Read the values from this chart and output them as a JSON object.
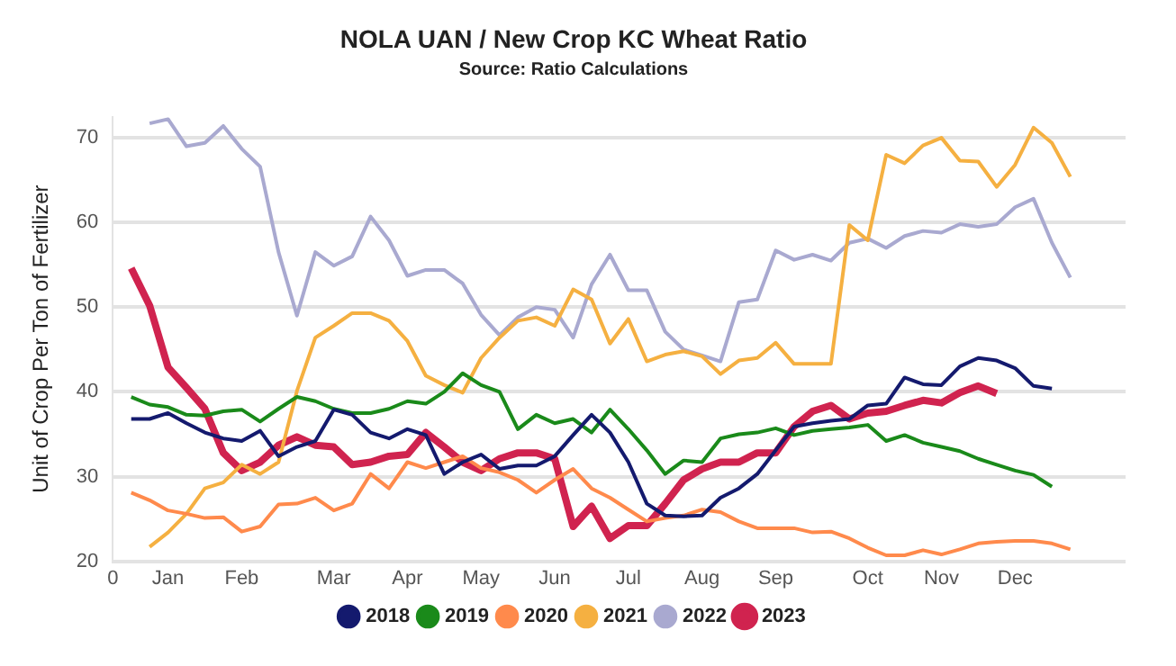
{
  "chart_data": {
    "type": "line",
    "title": "NOLA UAN / New Crop KC Wheat Ratio",
    "subtitle": "Source: Ratio Calculations",
    "ylabel": "Unit of Crop Per Ton of Fertilizer",
    "categories": [
      "0",
      null,
      null,
      "Jan",
      null,
      null,
      null,
      "Feb",
      null,
      null,
      null,
      null,
      "Mar",
      null,
      null,
      null,
      "Apr",
      null,
      null,
      null,
      "May",
      null,
      null,
      null,
      "Jun",
      null,
      null,
      null,
      "Jul",
      null,
      null,
      null,
      "Aug",
      null,
      null,
      null,
      "Sep",
      null,
      null,
      null,
      null,
      "Oct",
      null,
      null,
      null,
      "Nov",
      null,
      null,
      null,
      "Dec",
      null,
      null,
      null,
      null,
      null,
      null
    ],
    "ylim": [
      20,
      72.5
    ],
    "yticks": [
      20,
      30,
      40,
      50,
      60,
      70
    ],
    "grid": "y",
    "legend": "bottom",
    "marker": "none",
    "line_style": "solid",
    "series": [
      {
        "name": "2018",
        "color": "#141a6e",
        "values": [
          null,
          36.8,
          36.8,
          37.5,
          36.3,
          35.2,
          34.5,
          34.2,
          35.4,
          32.4,
          33.5,
          34.2,
          37.9,
          37.3,
          35.2,
          34.5,
          35.6,
          34.9,
          30.3,
          31.7,
          32.6,
          30.9,
          31.3,
          31.3,
          32.4,
          34.9,
          37.3,
          35.2,
          31.7,
          26.8,
          25.4,
          25.3,
          25.4,
          27.5,
          28.6,
          30.3,
          33.1,
          35.9,
          36.3,
          36.6,
          36.8,
          38.4,
          38.6,
          41.7,
          40.9,
          40.8,
          43.0,
          44.0,
          43.7,
          42.8,
          40.7,
          40.4,
          null,
          null,
          null,
          null
        ]
      },
      {
        "name": "2019",
        "color": "#1a8a1a",
        "values": [
          null,
          39.4,
          38.5,
          38.2,
          37.3,
          37.2,
          37.7,
          37.9,
          36.5,
          38.0,
          39.4,
          38.9,
          38.0,
          37.5,
          37.5,
          38.0,
          38.9,
          38.6,
          40.0,
          42.2,
          40.8,
          40.0,
          35.6,
          37.3,
          36.3,
          36.8,
          35.2,
          37.9,
          35.6,
          33.1,
          30.3,
          31.9,
          31.7,
          34.5,
          35.0,
          35.2,
          35.7,
          34.9,
          35.4,
          35.6,
          35.8,
          36.1,
          34.2,
          34.9,
          34.0,
          33.5,
          33.0,
          32.1,
          31.4,
          30.7,
          30.2,
          28.8,
          null,
          null,
          null,
          null
        ]
      },
      {
        "name": "2020",
        "color": "#ff8a4c",
        "values": [
          null,
          28.1,
          27.2,
          26.0,
          25.6,
          25.1,
          25.2,
          23.5,
          24.1,
          26.7,
          26.8,
          27.5,
          26.0,
          26.8,
          30.3,
          28.6,
          31.7,
          31.0,
          31.7,
          32.4,
          31.0,
          30.5,
          29.6,
          28.1,
          29.6,
          30.9,
          28.6,
          27.5,
          26.1,
          24.7,
          25.1,
          25.4,
          26.1,
          25.8,
          24.7,
          23.9,
          23.9,
          23.9,
          23.4,
          23.5,
          22.7,
          21.6,
          20.7,
          20.7,
          21.3,
          20.8,
          21.4,
          22.1,
          22.3,
          22.4,
          22.4,
          22.1,
          21.4,
          null,
          null,
          null
        ]
      },
      {
        "name": "2021",
        "color": "#f5b041",
        "values": [
          null,
          null,
          21.7,
          23.4,
          25.6,
          28.6,
          29.3,
          31.4,
          30.3,
          31.7,
          40.1,
          46.4,
          47.8,
          49.3,
          49.3,
          48.4,
          46.0,
          41.9,
          40.8,
          39.9,
          44.0,
          46.4,
          48.4,
          48.8,
          47.8,
          52.1,
          50.9,
          45.7,
          48.6,
          43.6,
          44.4,
          44.8,
          44.2,
          42.1,
          43.7,
          44.0,
          45.8,
          43.3,
          43.3,
          43.3,
          59.7,
          57.9,
          68.0,
          67.0,
          69.1,
          70.0,
          67.3,
          67.2,
          64.2,
          66.8,
          71.2,
          69.4,
          65.4,
          null,
          null,
          null
        ]
      },
      {
        "name": "2022",
        "color": "#a9a9d0",
        "values": [
          null,
          null,
          71.7,
          72.2,
          69.0,
          69.4,
          71.4,
          68.7,
          66.6,
          56.5,
          49.0,
          56.5,
          54.9,
          56.0,
          60.7,
          57.9,
          53.7,
          54.4,
          54.4,
          52.8,
          49.1,
          46.7,
          48.8,
          50.0,
          49.7,
          46.4,
          52.7,
          56.2,
          52.0,
          52.0,
          47.1,
          45.0,
          44.3,
          43.6,
          50.6,
          50.9,
          56.7,
          55.6,
          56.2,
          55.5,
          57.6,
          58.1,
          57.0,
          58.4,
          59.0,
          58.8,
          59.8,
          59.5,
          59.8,
          61.8,
          62.8,
          57.6,
          53.5,
          null,
          null,
          null
        ]
      },
      {
        "name": "2023",
        "color": "#d0234f",
        "values": [
          null,
          54.6,
          50.2,
          42.9,
          40.5,
          38.0,
          32.8,
          30.7,
          31.7,
          33.7,
          34.7,
          33.7,
          33.5,
          31.4,
          31.7,
          32.4,
          32.6,
          35.2,
          33.5,
          31.7,
          30.7,
          32.1,
          32.8,
          32.8,
          32.1,
          24.1,
          26.5,
          22.7,
          24.2,
          24.2,
          26.8,
          29.6,
          30.9,
          31.7,
          31.7,
          32.8,
          32.8,
          35.9,
          37.7,
          38.4,
          36.8,
          37.5,
          37.7,
          38.4,
          39.0,
          38.7,
          39.9,
          40.7,
          39.8,
          null,
          null,
          null,
          null,
          null,
          null,
          null
        ]
      }
    ]
  }
}
